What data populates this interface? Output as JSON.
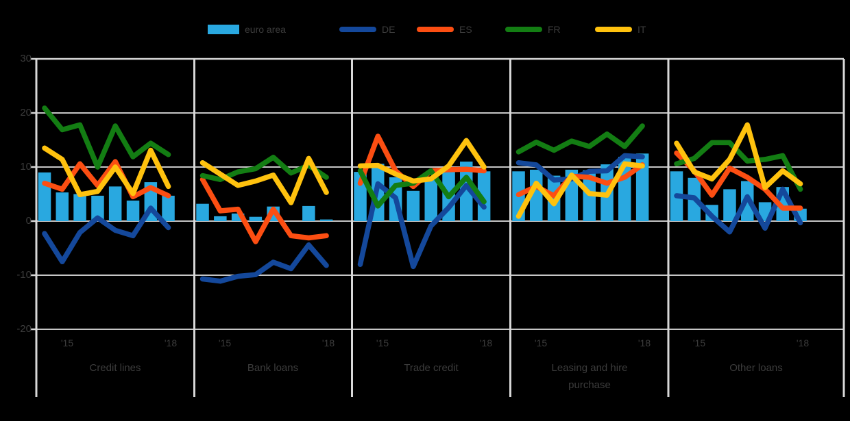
{
  "legend": {
    "items": [
      {
        "label": "euro area",
        "swatch": "bar-swatch"
      },
      {
        "label": "DE",
        "swatch": "line-swatch"
      },
      {
        "label": "ES",
        "swatch": "line-swatch"
      },
      {
        "label": "FR",
        "swatch": "line-swatch"
      },
      {
        "label": "IT",
        "swatch": "line-swatch"
      }
    ]
  },
  "axis": {
    "y_tick_labels": [
      "30",
      "20",
      "10",
      "0",
      "-10",
      "-20"
    ]
  },
  "chart_data": {
    "type": "bar+line",
    "x_ticks": [
      "'15",
      "'18"
    ],
    "periods_per_panel": 8,
    "ylim": [
      -20,
      30
    ],
    "y_tick_values": [
      30,
      20,
      10,
      0,
      -10,
      -20
    ],
    "grid": true,
    "legend_position": "top",
    "colors": {
      "background": "#000000",
      "gridline": "#c6c6c6",
      "frame": "#d8d8d8",
      "text": "#3c3c3c"
    },
    "series_meta": [
      {
        "key": "euro_area",
        "label": "euro area",
        "type": "bar",
        "color": "#29a8e0"
      },
      {
        "key": "DE",
        "label": "DE",
        "type": "line",
        "color": "#14489b"
      },
      {
        "key": "ES",
        "label": "ES",
        "type": "line",
        "color": "#fc4e12"
      },
      {
        "key": "FR",
        "label": "FR",
        "type": "line",
        "color": "#137d13"
      },
      {
        "key": "IT",
        "label": "IT",
        "type": "line",
        "color": "#ffc20e"
      }
    ],
    "panels": [
      {
        "title": "Credit lines",
        "title_line2": "",
        "euro_area": [
          9.0,
          5.3,
          5.0,
          4.7,
          6.4,
          3.8,
          7.2,
          4.7
        ],
        "DE": [
          -2.3,
          -7.5,
          -2.1,
          0.6,
          -1.7,
          -2.7,
          2.4,
          -1.2
        ],
        "ES": [
          7.0,
          5.9,
          10.6,
          6.6,
          11.0,
          4.5,
          6.2,
          4.7
        ],
        "FR": [
          20.9,
          16.9,
          17.8,
          10.0,
          17.6,
          11.9,
          14.4,
          12.3
        ],
        "IT": [
          13.5,
          11.4,
          4.9,
          5.5,
          10.0,
          5.1,
          13.1,
          6.4
        ]
      },
      {
        "title": "Bank loans",
        "title_line2": "",
        "euro_area": [
          3.2,
          0.9,
          1.4,
          0.8,
          2.7,
          0.0,
          2.8,
          0.3
        ],
        "DE": [
          -10.7,
          -11.1,
          -10.2,
          -9.9,
          -7.6,
          -8.8,
          -4.4,
          -8.2
        ],
        "ES": [
          7.7,
          1.9,
          2.2,
          -3.8,
          2.2,
          -2.7,
          -3.1,
          -2.7
        ],
        "FR": [
          8.4,
          7.7,
          9.1,
          9.7,
          11.8,
          8.9,
          10.3,
          8.1
        ],
        "IT": [
          10.8,
          8.7,
          6.6,
          7.4,
          8.5,
          3.4,
          11.6,
          5.3
        ]
      },
      {
        "title": "Trade credit",
        "title_line2": "",
        "euro_area": [
          9.1,
          10.6,
          8.1,
          5.6,
          7.8,
          9.3,
          11.0,
          9.2
        ],
        "DE": [
          -8.0,
          6.9,
          4.3,
          -8.4,
          -0.9,
          2.5,
          6.6,
          2.6
        ],
        "ES": [
          7.0,
          15.7,
          9.3,
          6.4,
          9.3,
          9.5,
          9.6,
          9.3
        ],
        "FR": [
          9.3,
          2.8,
          6.6,
          7.0,
          9.3,
          4.5,
          8.1,
          3.6
        ],
        "IT": [
          10.2,
          10.3,
          8.7,
          7.4,
          7.8,
          10.2,
          14.9,
          10.0
        ]
      },
      {
        "title": "Leasing and hire",
        "title_line2": "purchase",
        "euro_area": [
          9.2,
          9.5,
          8.4,
          9.5,
          9.4,
          10.5,
          11.9,
          12.5
        ],
        "DE": [
          10.8,
          10.4,
          7.6,
          7.8,
          9.2,
          9.3,
          12.1,
          11.9
        ],
        "ES": [
          4.9,
          6.4,
          4.7,
          8.3,
          8.1,
          7.0,
          8.1,
          10.4
        ],
        "FR": [
          12.8,
          14.6,
          13.1,
          14.8,
          13.8,
          16.1,
          13.8,
          17.6
        ],
        "IT": [
          0.9,
          7.0,
          3.2,
          8.5,
          5.1,
          4.8,
          10.6,
          10.2
        ]
      },
      {
        "title": "Other loans",
        "title_line2": "",
        "euro_area": [
          9.2,
          8.0,
          3.0,
          5.9,
          7.4,
          3.5,
          6.3,
          2.3
        ],
        "DE": [
          4.7,
          4.3,
          0.9,
          -2.0,
          4.5,
          -1.3,
          5.9,
          -0.3
        ],
        "ES": [
          12.6,
          9.3,
          4.8,
          9.8,
          8.1,
          5.9,
          2.4,
          2.4
        ],
        "FR": [
          10.6,
          11.6,
          14.5,
          14.5,
          11.1,
          11.4,
          12.1,
          5.9
        ],
        "IT": [
          14.4,
          9.1,
          7.8,
          11.4,
          17.8,
          6.2,
          9.3,
          6.9
        ]
      }
    ]
  }
}
